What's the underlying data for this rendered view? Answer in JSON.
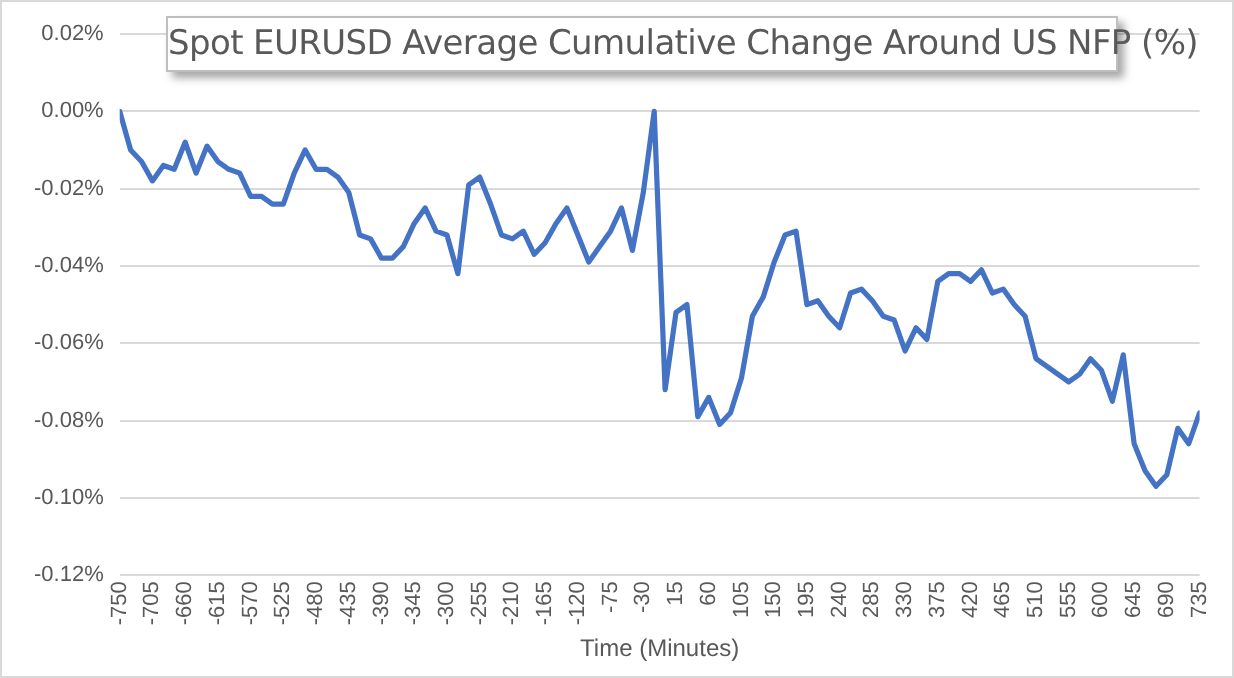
{
  "chart_data": {
    "type": "line",
    "title": "Spot EURUSD Average Cumulative Change Around US NFP (%)",
    "xlabel": "Time (Minutes)",
    "x": [
      -750,
      -735,
      -720,
      -705,
      -690,
      -675,
      -660,
      -645,
      -630,
      -615,
      -600,
      -585,
      -570,
      -555,
      -540,
      -525,
      -510,
      -495,
      -480,
      -465,
      -450,
      -435,
      -420,
      -405,
      -390,
      -375,
      -360,
      -345,
      -330,
      -315,
      -300,
      -285,
      -270,
      -255,
      -240,
      -225,
      -210,
      -195,
      -180,
      -165,
      -150,
      -135,
      -120,
      -105,
      -90,
      -75,
      -60,
      -45,
      -30,
      -15,
      0,
      15,
      30,
      45,
      60,
      75,
      90,
      105,
      120,
      135,
      150,
      165,
      180,
      195,
      210,
      225,
      240,
      255,
      270,
      285,
      300,
      315,
      330,
      345,
      360,
      375,
      390,
      405,
      420,
      435,
      450,
      465,
      480,
      495,
      510,
      525,
      540,
      555,
      570,
      585,
      600,
      615,
      630,
      645,
      660,
      675,
      690,
      705,
      720,
      735
    ],
    "values": [
      0,
      -0.01,
      -0.013,
      -0.018,
      -0.014,
      -0.015,
      -0.008,
      -0.016,
      -0.009,
      -0.013,
      -0.015,
      -0.016,
      -0.022,
      -0.022,
      -0.024,
      -0.024,
      -0.016,
      -0.01,
      -0.015,
      -0.015,
      -0.017,
      -0.021,
      -0.032,
      -0.033,
      -0.038,
      -0.038,
      -0.035,
      -0.029,
      -0.025,
      -0.031,
      -0.032,
      -0.042,
      -0.019,
      -0.017,
      -0.024,
      -0.032,
      -0.033,
      -0.031,
      -0.037,
      -0.034,
      -0.029,
      -0.025,
      -0.032,
      -0.039,
      -0.035,
      -0.031,
      -0.025,
      -0.036,
      -0.021,
      0.0,
      -0.072,
      -0.052,
      -0.05,
      -0.079,
      -0.074,
      -0.081,
      -0.078,
      -0.069,
      -0.053,
      -0.048,
      -0.039,
      -0.032,
      -0.031,
      -0.05,
      -0.049,
      -0.053,
      -0.056,
      -0.047,
      -0.046,
      -0.049,
      -0.053,
      -0.054,
      -0.062,
      -0.056,
      -0.059,
      -0.044,
      -0.042,
      -0.042,
      -0.044,
      -0.041,
      -0.047,
      -0.046,
      -0.05,
      -0.053,
      -0.064,
      -0.066,
      -0.068,
      -0.07,
      -0.068,
      -0.064,
      -0.067,
      -0.075,
      -0.063,
      -0.086,
      -0.093,
      -0.097,
      -0.094,
      -0.082,
      -0.086,
      -0.078
    ],
    "color": "#4472c4",
    "xlim": [
      -750,
      735
    ],
    "xticks": [
      -750,
      -705,
      -660,
      -615,
      -570,
      -525,
      -480,
      -435,
      -390,
      -345,
      -300,
      -255,
      -210,
      -165,
      -120,
      -75,
      -30,
      15,
      60,
      105,
      150,
      195,
      240,
      285,
      330,
      375,
      420,
      465,
      510,
      555,
      600,
      645,
      690,
      735
    ],
    "ylim": [
      -0.12,
      0.02
    ],
    "yticks": [
      {
        "value": -0.12,
        "label": "-0.12%"
      },
      {
        "value": -0.1,
        "label": "-0.10%"
      },
      {
        "value": -0.08,
        "label": "-0.08%"
      },
      {
        "value": -0.06,
        "label": "-0.06%"
      },
      {
        "value": -0.04,
        "label": "-0.04%"
      },
      {
        "value": -0.02,
        "label": "-0.02%"
      },
      {
        "value": 0,
        "label": "0.00%"
      },
      {
        "value": 0.02,
        "label": "0.02%"
      }
    ],
    "grid": "y",
    "marker": "none",
    "line_style": "solid"
  }
}
